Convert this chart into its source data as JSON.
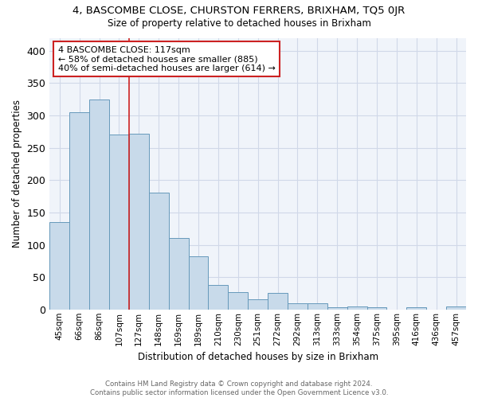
{
  "title": "4, BASCOMBE CLOSE, CHURSTON FERRERS, BRIXHAM, TQ5 0JR",
  "subtitle": "Size of property relative to detached houses in Brixham",
  "xlabel": "Distribution of detached houses by size in Brixham",
  "ylabel": "Number of detached properties",
  "bar_labels": [
    "45sqm",
    "66sqm",
    "86sqm",
    "107sqm",
    "127sqm",
    "148sqm",
    "169sqm",
    "189sqm",
    "210sqm",
    "230sqm",
    "251sqm",
    "272sqm",
    "292sqm",
    "313sqm",
    "333sqm",
    "354sqm",
    "375sqm",
    "395sqm",
    "416sqm",
    "436sqm",
    "457sqm"
  ],
  "bar_values": [
    135,
    305,
    325,
    270,
    272,
    181,
    110,
    82,
    38,
    27,
    16,
    26,
    9,
    9,
    4,
    5,
    4,
    0,
    3,
    0,
    5
  ],
  "bar_color": "#c8daea",
  "bar_edge_color": "#6699bb",
  "annotation_text": "4 BASCOMBE CLOSE: 117sqm\n← 58% of detached houses are smaller (885)\n40% of semi-detached houses are larger (614) →",
  "vline_x": 3.5,
  "vline_color": "#cc2222",
  "annotation_box_color": "#ffffff",
  "annotation_box_edge": "#cc2222",
  "ylim": [
    0,
    420
  ],
  "yticks": [
    0,
    50,
    100,
    150,
    200,
    250,
    300,
    350,
    400
  ],
  "footer": "Contains HM Land Registry data © Crown copyright and database right 2024.\nContains public sector information licensed under the Open Government Licence v3.0.",
  "bg_color": "#f0f4fa",
  "grid_color": "#d0d8e8",
  "fig_bg_color": "#ffffff"
}
